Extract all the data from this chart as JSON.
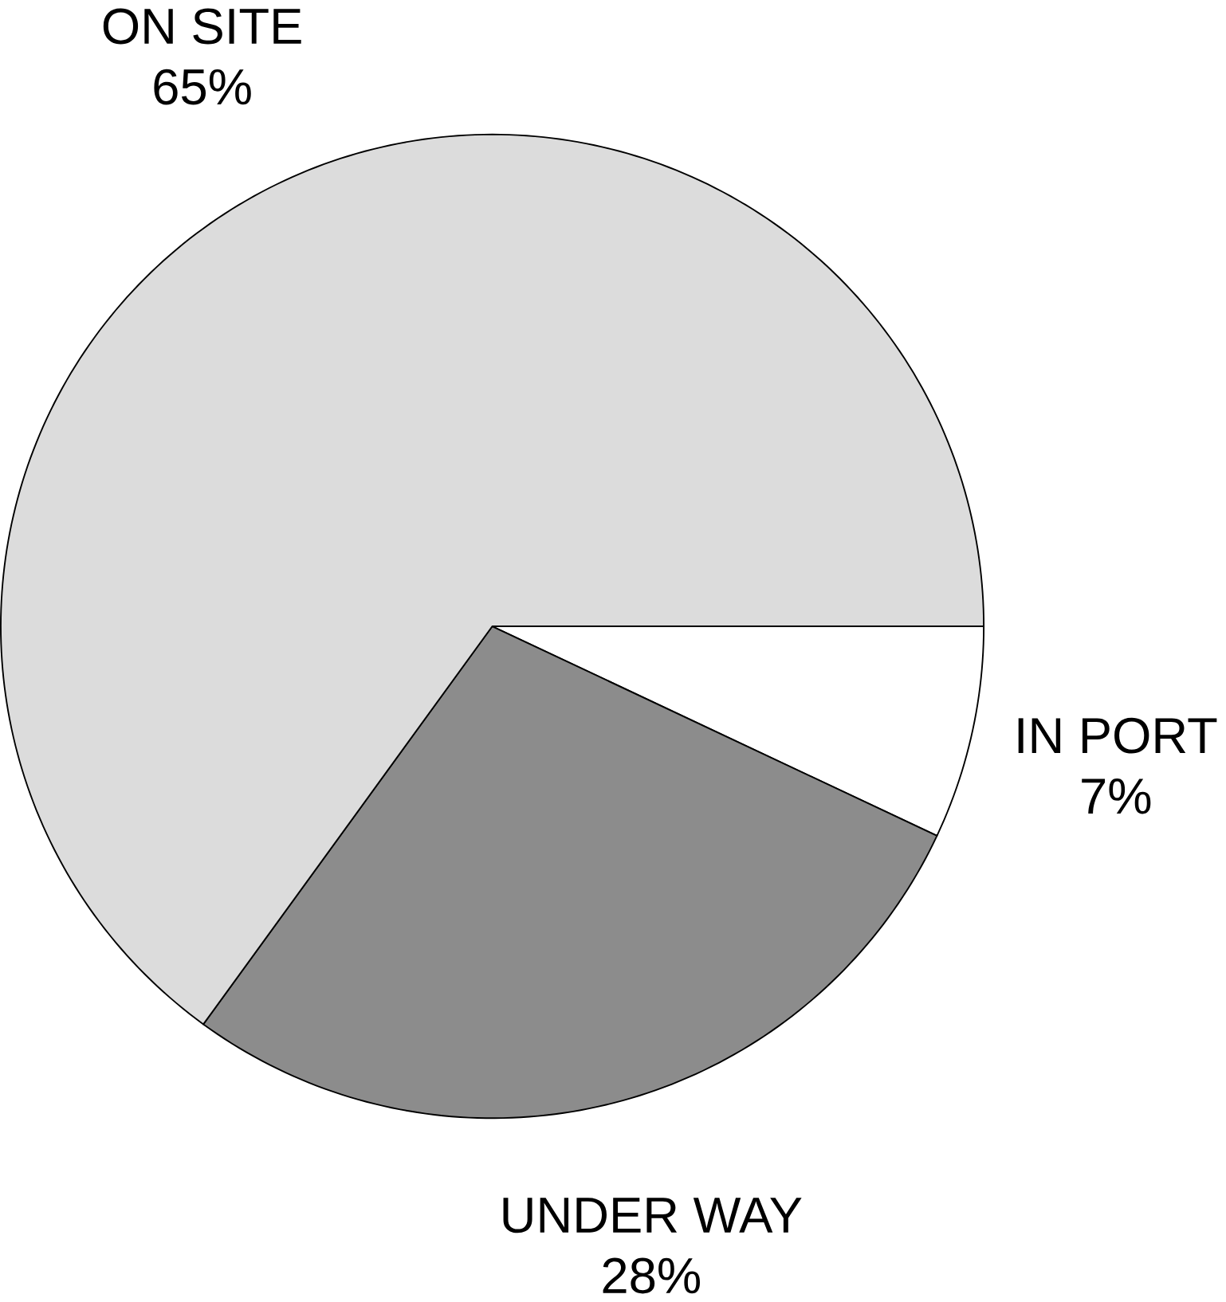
{
  "chart_data": {
    "type": "pie",
    "categories": [
      "IN PORT",
      "UNDER WAY",
      "ON SITE"
    ],
    "values": [
      7,
      28,
      65
    ],
    "value_labels": [
      "7%",
      "28%",
      "65%"
    ],
    "colors": [
      "#ffffff",
      "#8c8c8c",
      "#dcdcdc"
    ]
  }
}
